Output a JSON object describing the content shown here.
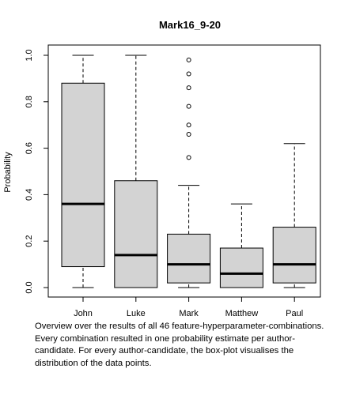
{
  "chart_data": {
    "type": "boxplot",
    "title": "Mark16_9-20",
    "ylabel": "Probability",
    "xlabel": "",
    "ylim": [
      0,
      1
    ],
    "yticks": [
      "0.0",
      "0.2",
      "0.4",
      "0.6",
      "0.8",
      "1.0"
    ],
    "grid": false,
    "categories": [
      "John",
      "Luke",
      "Mark",
      "Matthew",
      "Paul"
    ],
    "boxes": [
      {
        "category": "John",
        "min": 0.0,
        "q1": 0.09,
        "median": 0.36,
        "q3": 0.88,
        "max": 1.0,
        "outliers": []
      },
      {
        "category": "Luke",
        "min": 0.0,
        "q1": 0.0,
        "median": 0.14,
        "q3": 0.46,
        "max": 1.0,
        "outliers": []
      },
      {
        "category": "Mark",
        "min": 0.0,
        "q1": 0.02,
        "median": 0.1,
        "q3": 0.23,
        "max": 0.44,
        "outliers": [
          0.56,
          0.66,
          0.7,
          0.78,
          0.86,
          0.92,
          0.98
        ]
      },
      {
        "category": "Matthew",
        "min": 0.0,
        "q1": 0.0,
        "median": 0.06,
        "q3": 0.17,
        "max": 0.36,
        "outliers": []
      },
      {
        "category": "Paul",
        "min": 0.0,
        "q1": 0.02,
        "median": 0.1,
        "q3": 0.26,
        "max": 0.62,
        "outliers": []
      }
    ],
    "box_color": "#d3d3d3"
  },
  "caption": {
    "lines": [
      "Overview over the results of all 46 feature-hyperparameter-combinations.",
      "Every combination resulted in one probability estimate per author-",
      "candidate. For every author-candidate, the box-plot visualises the",
      "distribution of the data points."
    ]
  }
}
